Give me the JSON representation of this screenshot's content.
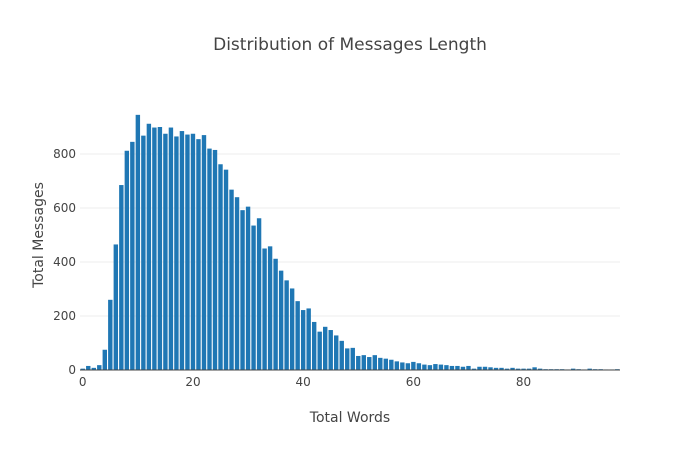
{
  "chart_data": {
    "type": "bar",
    "title": "Distribution of Messages Length",
    "xlabel": "Total Words",
    "ylabel": "Total Messages",
    "xlim": [
      -0.5,
      97.5
    ],
    "ylim": [
      0,
      1000
    ],
    "x_ticks": [
      0,
      20,
      40,
      60,
      80
    ],
    "y_ticks": [
      0,
      200,
      400,
      600,
      800
    ],
    "grid": "horizontal",
    "legend": "none",
    "bar_color": "#1f77b4",
    "x": [
      0,
      1,
      2,
      3,
      4,
      5,
      6,
      7,
      8,
      9,
      10,
      11,
      12,
      13,
      14,
      15,
      16,
      17,
      18,
      19,
      20,
      21,
      22,
      23,
      24,
      25,
      26,
      27,
      28,
      29,
      30,
      31,
      32,
      33,
      34,
      35,
      36,
      37,
      38,
      39,
      40,
      41,
      42,
      43,
      44,
      45,
      46,
      47,
      48,
      49,
      50,
      51,
      52,
      53,
      54,
      55,
      56,
      57,
      58,
      59,
      60,
      61,
      62,
      63,
      64,
      65,
      66,
      67,
      68,
      69,
      70,
      71,
      72,
      73,
      74,
      75,
      76,
      77,
      78,
      79,
      80,
      81,
      82,
      83,
      84,
      85,
      86,
      87,
      88,
      89,
      90,
      91,
      92,
      93,
      94,
      95,
      96,
      97
    ],
    "values": [
      5,
      15,
      8,
      18,
      75,
      260,
      465,
      685,
      812,
      845,
      945,
      868,
      912,
      898,
      900,
      875,
      898,
      865,
      885,
      872,
      875,
      855,
      870,
      820,
      815,
      762,
      742,
      668,
      640,
      592,
      605,
      535,
      562,
      450,
      458,
      412,
      368,
      332,
      302,
      255,
      222,
      228,
      178,
      142,
      160,
      148,
      128,
      108,
      80,
      82,
      52,
      55,
      48,
      55,
      45,
      42,
      38,
      32,
      28,
      25,
      30,
      25,
      20,
      18,
      22,
      20,
      18,
      15,
      15,
      12,
      15,
      5,
      12,
      12,
      10,
      8,
      8,
      5,
      8,
      5,
      5,
      5,
      10,
      5,
      3,
      3,
      3,
      3,
      2,
      5,
      3,
      2,
      5,
      3,
      3,
      2,
      2,
      3
    ]
  }
}
